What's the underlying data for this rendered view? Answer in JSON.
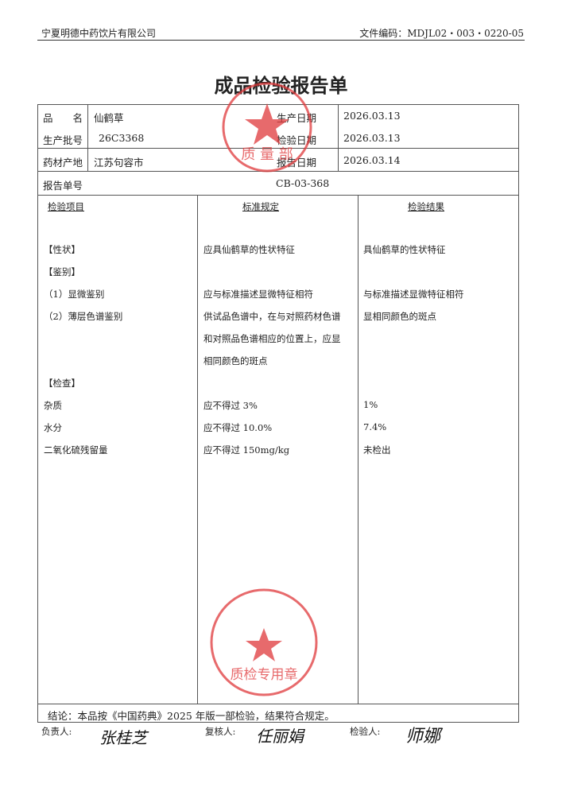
{
  "header": {
    "company": "宁夏明德中药饮片有限公司",
    "doc_code": "文件编码：MDJL02・003・0220-05"
  },
  "title": "成品检验报告单",
  "info": {
    "product_name_label": "品　　名",
    "product_name": "仙鹤草",
    "production_date_label": "生产日期",
    "production_date": "2026.03.13",
    "batch_label": "生产批号",
    "batch": "26C3368",
    "inspection_date_label": "检验日期",
    "inspection_date": "2026.03.13",
    "origin_label": "药材产地",
    "origin": "江苏句容市",
    "report_date_label": "报告日期",
    "report_date": "2026.03.14",
    "report_no_label": "报告单号",
    "report_no": "CB-03-368"
  },
  "columns": [
    "检验项目",
    "标准规定",
    "检验结果"
  ],
  "rows": [
    {
      "item": "【性状】",
      "standard": "应具仙鹤草的性状特征",
      "result": "具仙鹤草的性状特征"
    },
    {
      "item": "【鉴别】",
      "standard": "",
      "result": ""
    },
    {
      "item": "（1）显微鉴别",
      "standard": "应与标准描述显微特征相符",
      "result": "与标准描述显微特征相符"
    },
    {
      "item": "（2）薄层色谱鉴别",
      "standard": "供试品色谱中，在与对照药材色谱",
      "result": "显相同颜色的斑点"
    },
    {
      "item": "",
      "standard": "和对照品色谱相应的位置上，应显",
      "result": ""
    },
    {
      "item": "",
      "standard": "相同颜色的斑点",
      "result": ""
    },
    {
      "item": "【检查】",
      "standard": "",
      "result": ""
    },
    {
      "item": "杂质",
      "standard": "应不得过 3%",
      "result": "1%"
    },
    {
      "item": "水分",
      "standard": "应不得过 10.0%",
      "result": "7.4%"
    },
    {
      "item": "二氧化硫残留量",
      "standard": "应不得过 150mg/kg",
      "result": "未检出"
    }
  ],
  "conclusion": "结论：本品按《中国药典》2025 年版一部检验，结果符合规定。",
  "signatures": {
    "responsible_label": "负责人:",
    "responsible": "张桂芝",
    "reviewer_label": "复核人:",
    "reviewer": "任丽娟",
    "inspector_label": "检验人:",
    "inspector": "师娜"
  },
  "seals": {
    "top": "宁夏明德中药饮片有限公司 质量部",
    "bottom": "宁夏明德中药饮片有限公司 质检专用章"
  },
  "colors": {
    "seal": "#e0393b",
    "text": "#222222"
  }
}
